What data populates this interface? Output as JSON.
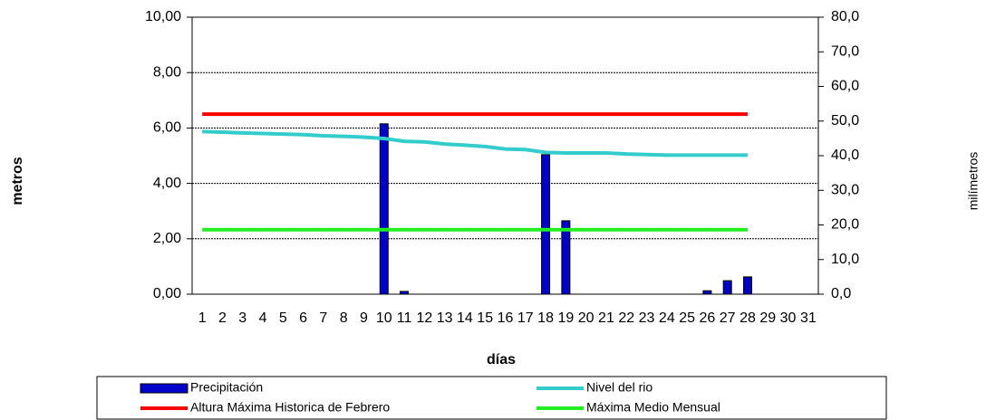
{
  "chart_data": {
    "type": "bar_line",
    "x_label": "días",
    "y_label": "metros",
    "y2_label": "milímetros",
    "categories": [
      "1",
      "2",
      "3",
      "4",
      "5",
      "6",
      "7",
      "8",
      "9",
      "10",
      "11",
      "12",
      "13",
      "14",
      "15",
      "16",
      "17",
      "18",
      "19",
      "20",
      "21",
      "22",
      "23",
      "24",
      "25",
      "26",
      "27",
      "28",
      "29",
      "30",
      "31"
    ],
    "ylim": [
      0,
      10
    ],
    "yticks": [
      {
        "value": 0,
        "label": "0,00"
      },
      {
        "value": 2,
        "label": "2,00"
      },
      {
        "value": 4,
        "label": "4,00"
      },
      {
        "value": 6,
        "label": "6,00"
      },
      {
        "value": 8,
        "label": "8,00"
      },
      {
        "value": 10,
        "label": "10,00"
      }
    ],
    "y2lim": [
      0,
      80
    ],
    "y2ticks": [
      {
        "value": 0,
        "label": "0,0"
      },
      {
        "value": 10,
        "label": "10,0"
      },
      {
        "value": 20,
        "label": "20,0"
      },
      {
        "value": 30,
        "label": "30,0"
      },
      {
        "value": 40,
        "label": "40,0"
      },
      {
        "value": 50,
        "label": "50,0"
      },
      {
        "value": 60,
        "label": "60,0"
      },
      {
        "value": 70,
        "label": "70,0"
      },
      {
        "value": 80,
        "label": "80,0"
      }
    ],
    "grid": true,
    "series": [
      {
        "name": "Precipitación",
        "kind": "bar",
        "axis": "y2",
        "color": "#0000cc",
        "values": [
          0,
          0,
          0,
          0,
          0,
          0,
          0,
          0,
          0,
          49.2,
          0.8,
          0,
          0,
          0,
          0,
          0,
          0,
          40.3,
          21.2,
          0,
          0,
          0,
          0,
          0,
          0,
          1.0,
          3.9,
          5.0,
          null,
          null,
          null
        ]
      },
      {
        "name": "Nivel del rio",
        "kind": "line",
        "color": "#33cccc",
        "values": [
          5.87,
          5.85,
          5.82,
          5.8,
          5.78,
          5.76,
          5.72,
          5.7,
          5.67,
          5.62,
          5.52,
          5.5,
          5.42,
          5.38,
          5.33,
          5.24,
          5.22,
          5.12,
          5.1,
          5.1,
          5.1,
          5.06,
          5.04,
          5.02,
          5.02,
          5.02,
          5.02,
          5.02,
          null,
          null,
          null
        ]
      },
      {
        "name": "Altura Máxima Historica de Febrero",
        "kind": "line",
        "color": "#ff0000",
        "values": [
          6.5,
          6.5,
          6.5,
          6.5,
          6.5,
          6.5,
          6.5,
          6.5,
          6.5,
          6.5,
          6.5,
          6.5,
          6.5,
          6.5,
          6.5,
          6.5,
          6.5,
          6.5,
          6.5,
          6.5,
          6.5,
          6.5,
          6.5,
          6.5,
          6.5,
          6.5,
          6.5,
          6.5,
          null,
          null,
          null
        ]
      },
      {
        "name": "Máxima Medio Mensual",
        "kind": "line",
        "color": "#22ee22",
        "values": [
          2.33,
          2.33,
          2.33,
          2.33,
          2.33,
          2.33,
          2.33,
          2.33,
          2.33,
          2.33,
          2.33,
          2.33,
          2.33,
          2.33,
          2.33,
          2.33,
          2.33,
          2.33,
          2.33,
          2.33,
          2.33,
          2.33,
          2.33,
          2.33,
          2.33,
          2.33,
          2.33,
          2.33,
          null,
          null,
          null
        ]
      }
    ]
  }
}
